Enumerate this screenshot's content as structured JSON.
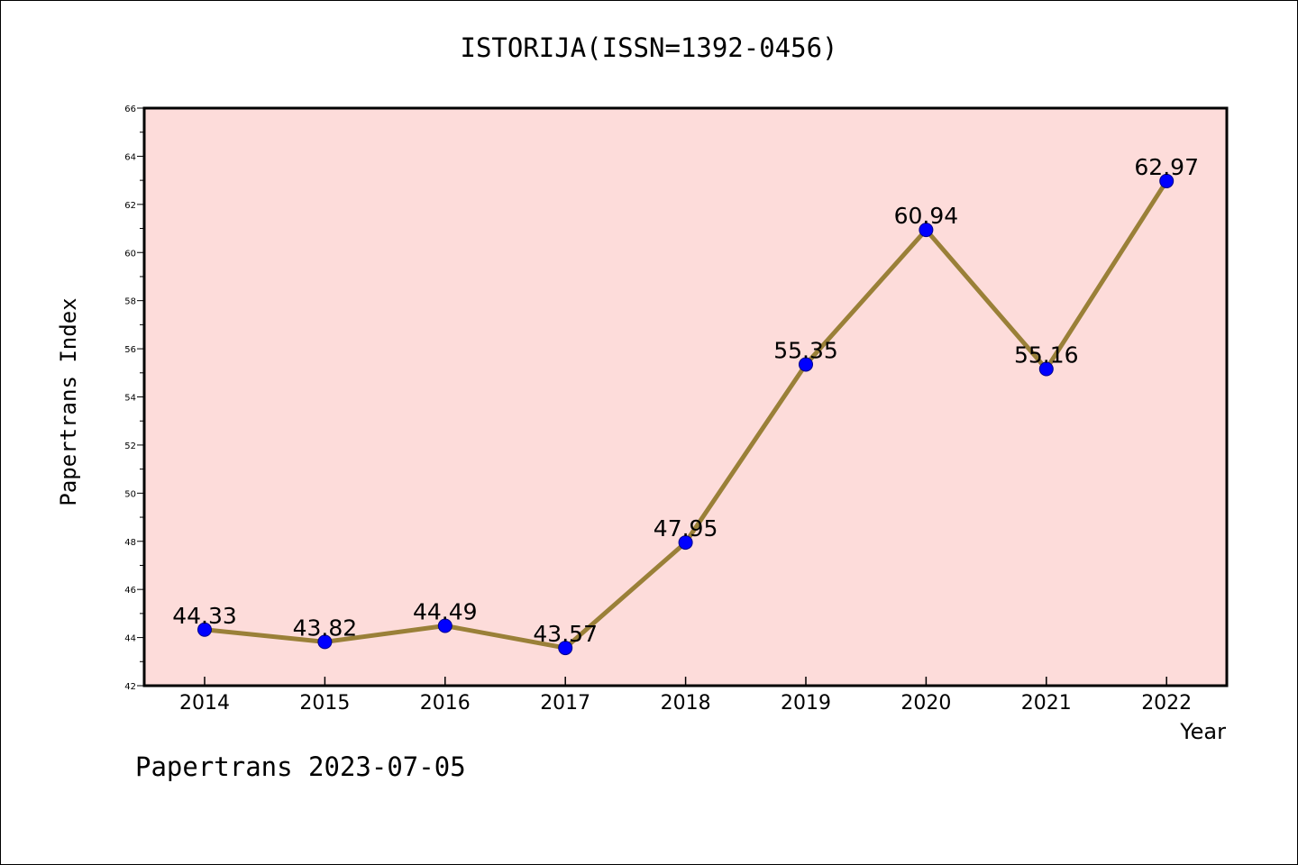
{
  "chart_data": {
    "type": "line",
    "title": "ISTORIJA(ISSN=1392-0456)",
    "xlabel": "Year",
    "ylabel": "Papertrans Index",
    "categories": [
      "2014",
      "2015",
      "2016",
      "2017",
      "2018",
      "2019",
      "2020",
      "2021",
      "2022"
    ],
    "values": [
      44.33,
      43.82,
      44.49,
      43.57,
      47.95,
      55.35,
      60.94,
      55.16,
      62.97
    ],
    "value_labels": [
      "44.33",
      "43.82",
      "44.49",
      "43.57",
      "47.95",
      "55.35",
      "60.94",
      "55.16",
      "62.97"
    ],
    "ylim": [
      42,
      66
    ],
    "yticks": [
      "42",
      "44",
      "46",
      "48",
      "50",
      "52",
      "54",
      "56",
      "58",
      "60",
      "62",
      "64",
      "66"
    ],
    "grid": false,
    "colors": {
      "plot_background": "#fddcda",
      "line": "#9a8038",
      "marker": "#0000ff"
    }
  },
  "footer": "Papertrans 2023-07-05"
}
